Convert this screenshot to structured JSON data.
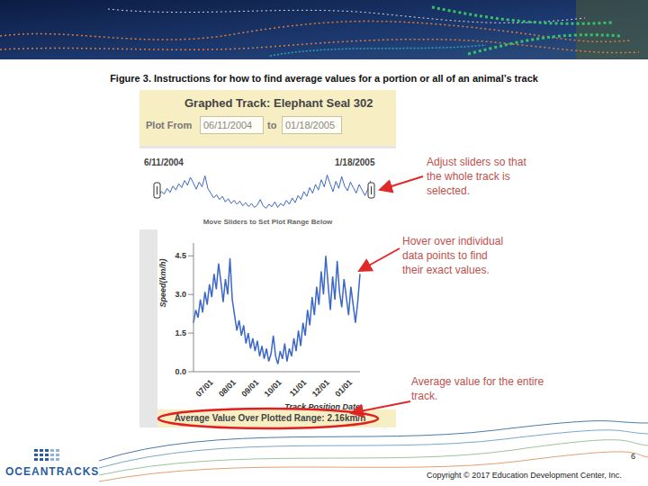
{
  "caption": "Figure 3. Instructions for how to find average values for a portion or all of an animal’s track",
  "panel": {
    "title": "Graphed Track: Elephant Seal 302",
    "plot_from_label": "Plot From",
    "from_date": "06/11/2004",
    "to_label": "to",
    "to_date": "01/18/2005",
    "overview_start": "6/11/2004",
    "overview_end": "1/18/2005",
    "overview_hint": "Move Sliders to Set Plot Range Below",
    "average_text": "Average Value Over Plotted Range: 2.16km/h"
  },
  "chart_data": {
    "type": "line",
    "y_label": "Speed(km/h)",
    "x_label": "Track Position Date",
    "color": "#3a67c8",
    "grid": false,
    "ylim": [
      0,
      5
    ],
    "yticks": [
      {
        "value": 0,
        "label": "0.0"
      },
      {
        "value": 1.5,
        "label": "1.5"
      },
      {
        "value": 3,
        "label": "3.0"
      },
      {
        "value": 4.5,
        "label": "4.5"
      }
    ],
    "categories": [
      null,
      null,
      null,
      null,
      null,
      null,
      null,
      "07/01",
      null,
      null,
      null,
      null,
      null,
      null,
      null,
      null,
      null,
      "08/01",
      null,
      null,
      null,
      null,
      null,
      null,
      null,
      null,
      null,
      "09/01",
      null,
      null,
      null,
      null,
      null,
      null,
      null,
      null,
      null,
      "10/01",
      null,
      null,
      null,
      null,
      null,
      null,
      null,
      null,
      null,
      null,
      "11/01",
      null,
      null,
      null,
      null,
      null,
      null,
      null,
      null,
      null,
      "12/01",
      null,
      null,
      null,
      null,
      null,
      null,
      null,
      null,
      null,
      "01/01",
      null,
      null,
      null,
      null,
      null
    ],
    "values": [
      1.9,
      2.4,
      2.1,
      2.8,
      2.3,
      3.1,
      2.6,
      3.4,
      2.9,
      3.8,
      3.2,
      4.2,
      3.5,
      2.7,
      3.6,
      3.0,
      4.4,
      2.8,
      2.2,
      1.6,
      2.0,
      1.4,
      1.8,
      1.1,
      1.5,
      0.9,
      1.3,
      0.8,
      1.2,
      0.6,
      1.0,
      0.5,
      0.9,
      0.4,
      0.7,
      1.4,
      0.6,
      0.3,
      0.8,
      0.5,
      1.1,
      0.4,
      0.9,
      0.6,
      1.3,
      0.8,
      1.6,
      1.0,
      1.9,
      1.4,
      2.4,
      1.8,
      2.9,
      2.2,
      3.3,
      2.6,
      3.9,
      3.0,
      4.5,
      3.4,
      2.4,
      3.7,
      2.8,
      4.3,
      3.1,
      2.5,
      3.6,
      2.9,
      2.2,
      3.3,
      2.6,
      1.9,
      2.7,
      3.8
    ]
  },
  "annotations": [
    {
      "lines": [
        "Adjust sliders so that",
        "the whole track is",
        "selected."
      ]
    },
    {
      "lines": [
        "Hover over individual",
        "data points to find",
        "their exact values."
      ]
    },
    {
      "lines": [
        "Average value for the entire",
        "track."
      ]
    }
  ],
  "footer": {
    "logo": "OCEANTRACKS",
    "page": "6",
    "copyright": "Copyright © 2017 Education Development Center, Inc."
  }
}
